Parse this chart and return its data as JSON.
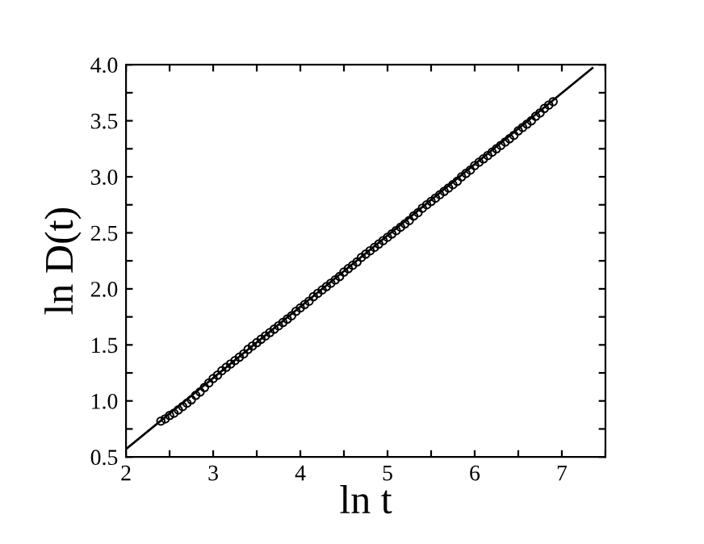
{
  "chart_data": {
    "type": "scatter",
    "xlabel": "ln t",
    "ylabel": "ln D(t)",
    "xlim": [
      2,
      7.5
    ],
    "ylim": [
      0.5,
      4.0
    ],
    "xticks": [
      2,
      {
        "value": 2.5,
        "label": null
      },
      3,
      {
        "value": 3.5,
        "label": null
      },
      4,
      {
        "value": 4.5,
        "label": null
      },
      5,
      {
        "value": 5.5,
        "label": null
      },
      6,
      {
        "value": 6.5,
        "label": null
      },
      7,
      {
        "value": 7.5,
        "label": null
      }
    ],
    "yticks": [
      {
        "value": 0.5,
        "label": "0.5"
      },
      {
        "value": 0.75,
        "label": null
      },
      {
        "value": 1.0,
        "label": "1.0"
      },
      {
        "value": 1.25,
        "label": null
      },
      {
        "value": 1.5,
        "label": "1.5"
      },
      {
        "value": 1.75,
        "label": null
      },
      {
        "value": 2.0,
        "label": "2.0"
      },
      {
        "value": 2.25,
        "label": null
      },
      {
        "value": 2.5,
        "label": "2.5"
      },
      {
        "value": 2.75,
        "label": null
      },
      {
        "value": 3.0,
        "label": "3.0"
      },
      {
        "value": 3.25,
        "label": null
      },
      {
        "value": 3.5,
        "label": "3.5"
      },
      {
        "value": 3.75,
        "label": null
      },
      {
        "value": 4.0,
        "label": "4.0"
      }
    ],
    "grid": false,
    "legend": false,
    "series": [
      {
        "color": "#000000",
        "marker": "circle",
        "x": [
          2.4,
          2.45,
          2.5,
          2.55,
          2.6,
          2.65,
          2.7,
          2.75,
          2.8,
          2.85,
          2.9,
          2.95,
          3.0,
          3.05,
          3.1,
          3.15,
          3.2,
          3.25,
          3.3,
          3.35,
          3.4,
          3.45,
          3.5,
          3.55,
          3.6,
          3.65,
          3.7,
          3.75,
          3.8,
          3.85,
          3.9,
          3.95,
          4.0,
          4.05,
          4.1,
          4.15,
          4.2,
          4.25,
          4.3,
          4.35,
          4.4,
          4.45,
          4.5,
          4.55,
          4.6,
          4.65,
          4.7,
          4.75,
          4.8,
          4.85,
          4.9,
          4.95,
          5.0,
          5.05,
          5.1,
          5.15,
          5.2,
          5.25,
          5.3,
          5.35,
          5.4,
          5.45,
          5.5,
          5.55,
          5.6,
          5.65,
          5.7,
          5.75,
          5.8,
          5.85,
          5.9,
          5.95,
          6.0,
          6.05,
          6.1,
          6.15,
          6.2,
          6.25,
          6.3,
          6.35,
          6.4,
          6.45,
          6.5,
          6.55,
          6.6,
          6.65,
          6.7,
          6.75,
          6.8,
          6.85,
          6.9
        ],
        "values": [
          0.82,
          0.84,
          0.87,
          0.89,
          0.92,
          0.95,
          0.98,
          1.01,
          1.05,
          1.08,
          1.12,
          1.16,
          1.2,
          1.23,
          1.27,
          1.3,
          1.33,
          1.36,
          1.39,
          1.42,
          1.46,
          1.49,
          1.52,
          1.55,
          1.58,
          1.61,
          1.64,
          1.67,
          1.7,
          1.73,
          1.76,
          1.8,
          1.83,
          1.86,
          1.89,
          1.93,
          1.96,
          1.99,
          2.02,
          2.05,
          2.08,
          2.11,
          2.15,
          2.18,
          2.21,
          2.24,
          2.28,
          2.31,
          2.34,
          2.37,
          2.4,
          2.43,
          2.46,
          2.49,
          2.52,
          2.55,
          2.58,
          2.61,
          2.65,
          2.68,
          2.72,
          2.75,
          2.78,
          2.81,
          2.84,
          2.87,
          2.9,
          2.93,
          2.96,
          3.0,
          3.03,
          3.06,
          3.1,
          3.13,
          3.16,
          3.19,
          3.22,
          3.25,
          3.28,
          3.31,
          3.34,
          3.37,
          3.41,
          3.44,
          3.47,
          3.5,
          3.54,
          3.57,
          3.61,
          3.64,
          3.67
        ]
      },
      {
        "type": "line",
        "color": "#000000",
        "marker": "none",
        "line_style": "solid",
        "x": [
          2.0,
          7.35
        ],
        "values": [
          0.57,
          3.97
        ]
      }
    ]
  }
}
